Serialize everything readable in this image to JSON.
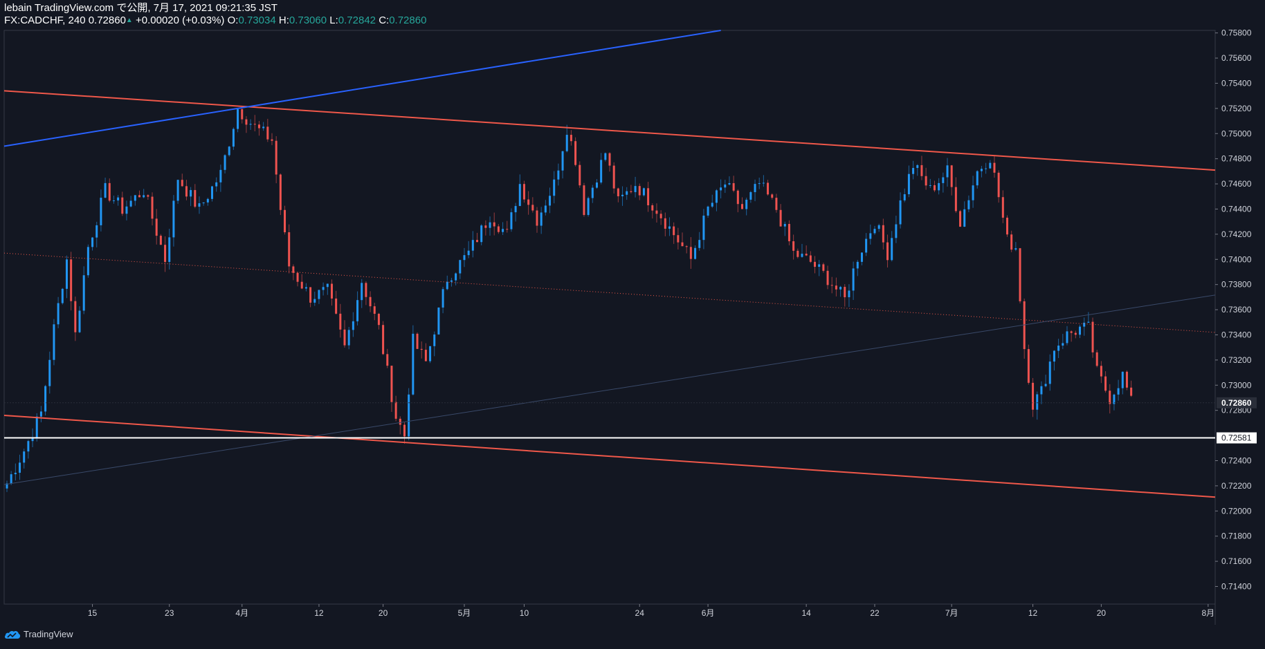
{
  "header": {
    "line1": "lebain TradingView.com で公開, 7月 17, 2021 09:21:35 JST",
    "symbol": "FX:CADCHF, 240 0.72860",
    "change": "+0.00020 (+0.03%)",
    "o_label": "O:",
    "o_value": "0.73034",
    "h_label": "H:",
    "h_value": "0.73060",
    "l_label": "L:",
    "l_value": "0.72842",
    "c_label": "C:",
    "c_value": "0.72860"
  },
  "footer": {
    "brand": "TradingView"
  },
  "colors": {
    "background": "#131722",
    "up": "#2196f3",
    "down": "#ef5350",
    "blue_line": "#2962ff",
    "red_line": "#f0584a",
    "text": "#d1d4dc",
    "positive": "#26a69a"
  },
  "chart_data": {
    "type": "candlestick",
    "symbol": "FX:CADCHF",
    "interval": "240",
    "y_axis": {
      "min": 0.7126,
      "max": 0.7582,
      "ticks": [
        "0.75800",
        "0.75600",
        "0.75400",
        "0.75200",
        "0.75000",
        "0.74800",
        "0.74600",
        "0.74400",
        "0.74200",
        "0.74000",
        "0.73800",
        "0.73600",
        "0.73400",
        "0.73200",
        "0.73000",
        "0.72800",
        "0.72400",
        "0.72200",
        "0.72000",
        "0.71800",
        "0.71600",
        "0.71400"
      ],
      "last_price_label": "0.72860",
      "horizontal_line_label": "0.72581"
    },
    "x_axis": {
      "labels": [
        "15",
        "23",
        "4月",
        "12",
        "20",
        "5月",
        "10",
        "24",
        "6月",
        "14",
        "22",
        "7月",
        "12",
        "20",
        "8月"
      ],
      "label_index": [
        20,
        38,
        55,
        73,
        88,
        107,
        121,
        148,
        164,
        187,
        203,
        221,
        240,
        256,
        281
      ]
    },
    "bar_count": 282,
    "key_points": [
      {
        "i": 0,
        "price": 0.7222
      },
      {
        "i": 4,
        "price": 0.7248
      },
      {
        "i": 8,
        "price": 0.7278
      },
      {
        "i": 11,
        "price": 0.7345
      },
      {
        "i": 14,
        "price": 0.74
      },
      {
        "i": 16,
        "price": 0.734
      },
      {
        "i": 19,
        "price": 0.741
      },
      {
        "i": 23,
        "price": 0.7455
      },
      {
        "i": 27,
        "price": 0.744
      },
      {
        "i": 32,
        "price": 0.7455
      },
      {
        "i": 37,
        "price": 0.74
      },
      {
        "i": 40,
        "price": 0.7465
      },
      {
        "i": 45,
        "price": 0.744
      },
      {
        "i": 50,
        "price": 0.7468
      },
      {
        "i": 54,
        "price": 0.752
      },
      {
        "i": 58,
        "price": 0.7505
      },
      {
        "i": 62,
        "price": 0.7495
      },
      {
        "i": 64,
        "price": 0.744
      },
      {
        "i": 66,
        "price": 0.7395
      },
      {
        "i": 71,
        "price": 0.737
      },
      {
        "i": 75,
        "price": 0.7375
      },
      {
        "i": 79,
        "price": 0.733
      },
      {
        "i": 83,
        "price": 0.7383
      },
      {
        "i": 87,
        "price": 0.7345
      },
      {
        "i": 91,
        "price": 0.7275
      },
      {
        "i": 93,
        "price": 0.726
      },
      {
        "i": 95,
        "price": 0.7335
      },
      {
        "i": 98,
        "price": 0.7318
      },
      {
        "i": 103,
        "price": 0.7385
      },
      {
        "i": 108,
        "price": 0.7405
      },
      {
        "i": 113,
        "price": 0.7435
      },
      {
        "i": 117,
        "price": 0.742
      },
      {
        "i": 120,
        "price": 0.746
      },
      {
        "i": 124,
        "price": 0.7432
      },
      {
        "i": 128,
        "price": 0.746
      },
      {
        "i": 131,
        "price": 0.7505
      },
      {
        "i": 133,
        "price": 0.748
      },
      {
        "i": 135,
        "price": 0.744
      },
      {
        "i": 140,
        "price": 0.7485
      },
      {
        "i": 143,
        "price": 0.7445
      },
      {
        "i": 147,
        "price": 0.746
      },
      {
        "i": 152,
        "price": 0.744
      },
      {
        "i": 156,
        "price": 0.742
      },
      {
        "i": 160,
        "price": 0.74
      },
      {
        "i": 164,
        "price": 0.744
      },
      {
        "i": 168,
        "price": 0.746
      },
      {
        "i": 172,
        "price": 0.744
      },
      {
        "i": 176,
        "price": 0.746
      },
      {
        "i": 180,
        "price": 0.744
      },
      {
        "i": 184,
        "price": 0.7405
      },
      {
        "i": 188,
        "price": 0.7398
      },
      {
        "i": 192,
        "price": 0.7385
      },
      {
        "i": 196,
        "price": 0.7368
      },
      {
        "i": 199,
        "price": 0.7402
      },
      {
        "i": 203,
        "price": 0.743
      },
      {
        "i": 206,
        "price": 0.7405
      },
      {
        "i": 209,
        "price": 0.7445
      },
      {
        "i": 212,
        "price": 0.7475
      },
      {
        "i": 216,
        "price": 0.7455
      },
      {
        "i": 220,
        "price": 0.747
      },
      {
        "i": 223,
        "price": 0.743
      },
      {
        "i": 227,
        "price": 0.747
      },
      {
        "i": 230,
        "price": 0.7482
      },
      {
        "i": 232,
        "price": 0.745
      },
      {
        "i": 234,
        "price": 0.7415
      },
      {
        "i": 236,
        "price": 0.741
      },
      {
        "i": 238,
        "price": 0.733
      },
      {
        "i": 240,
        "price": 0.7285
      },
      {
        "i": 242,
        "price": 0.7295
      },
      {
        "i": 245,
        "price": 0.733
      },
      {
        "i": 248,
        "price": 0.734
      },
      {
        "i": 251,
        "price": 0.7345
      },
      {
        "i": 253,
        "price": 0.7345
      },
      {
        "i": 255,
        "price": 0.731
      },
      {
        "i": 258,
        "price": 0.729
      },
      {
        "i": 261,
        "price": 0.7308
      },
      {
        "i": 263,
        "price": 0.7286
      }
    ],
    "drawings": [
      {
        "name": "upper-channel",
        "color": "red",
        "p1": {
          "i": 0,
          "price": 0.7534
        },
        "p2": {
          "i": 287,
          "price": 0.747
        }
      },
      {
        "name": "lower-channel",
        "color": "red",
        "p1": {
          "i": 0,
          "price": 0.7276
        },
        "p2": {
          "i": 287,
          "price": 0.721
        }
      },
      {
        "name": "mid-channel",
        "color": "red-dotted",
        "p1": {
          "i": 0,
          "price": 0.7405
        },
        "p2": {
          "i": 287,
          "price": 0.7341
        }
      },
      {
        "name": "blue-trend",
        "color": "blue",
        "p1": {
          "i": 0,
          "price": 0.749
        },
        "p2": {
          "i": 167,
          "price": 0.7582
        }
      },
      {
        "name": "thin-trend",
        "color": "faint",
        "p1": {
          "i": 0,
          "price": 0.7221
        },
        "p2": {
          "i": 287,
          "price": 0.7374
        }
      },
      {
        "name": "horizontal",
        "color": "white",
        "price": 0.72581
      }
    ]
  }
}
